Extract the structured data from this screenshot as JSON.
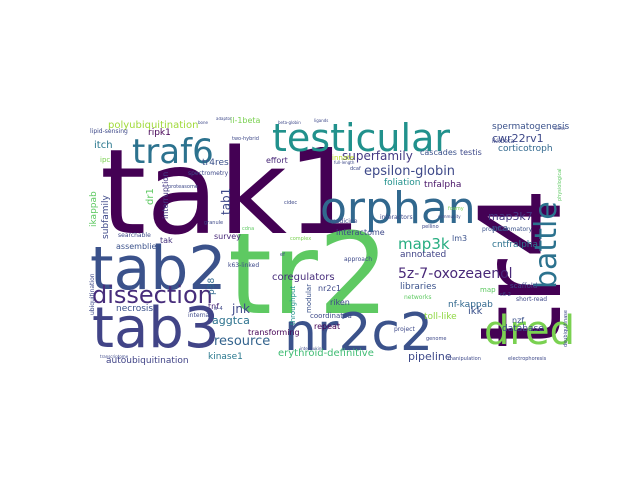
{
  "words": [
    {
      "id": "tak1",
      "text": "tak1",
      "color": "#440154"
    },
    {
      "id": "tr2",
      "text": "tr2",
      "color": "#5ec962"
    },
    {
      "id": "tr4",
      "text": "tr4",
      "color": "#440154"
    },
    {
      "id": "tab2",
      "text": "tab2",
      "color": "#3b528b"
    },
    {
      "id": "tab3",
      "text": "tab3",
      "color": "#414487"
    },
    {
      "id": "nr2c2",
      "text": "nr2c2",
      "color": "#3b528b"
    },
    {
      "id": "orphan",
      "text": "orphan",
      "color": "#31688e"
    },
    {
      "id": "testicular",
      "text": "testicular",
      "color": "#21918c"
    },
    {
      "id": "traf6",
      "text": "traf6",
      "color": "#2c728e"
    },
    {
      "id": "dissection",
      "text": "dissection",
      "color": "#472d7b"
    },
    {
      "id": "dred",
      "text": "dred",
      "color": "#7ad151"
    },
    {
      "id": "battle",
      "text": "battle",
      "color": "#2c728e"
    },
    {
      "id": "5z-7-oxozeaenol",
      "text": "5z-7-oxozeaenol",
      "color": "#482878"
    },
    {
      "id": "epsilon-globin",
      "text": "epsilon-globin",
      "color": "#3e4989"
    },
    {
      "id": "map3k",
      "text": "map3k",
      "color": "#27ad81"
    },
    {
      "id": "superfamily",
      "text": "superfamily",
      "color": "#443983"
    },
    {
      "id": "cwr22rv1",
      "text": "cwr22rv1",
      "color": "#3e4989"
    },
    {
      "id": "polyubiquitination",
      "text": "polyubiquitination",
      "color": "#a0da39"
    },
    {
      "id": "resource",
      "text": "resource",
      "color": "#33638d"
    },
    {
      "id": "jnk",
      "text": "jnk",
      "color": "#3e4989"
    },
    {
      "id": "aggtca",
      "text": "aggtca",
      "color": "#2c728e"
    },
    {
      "id": "erythroid-definitive",
      "text": "erythroid-definitive",
      "color": "#3fbc73"
    },
    {
      "id": "pipeline",
      "text": "pipeline",
      "color": "#3e4989"
    },
    {
      "id": "ripk1",
      "text": "ripk1",
      "color": "#440154"
    },
    {
      "id": "spermatogenesis",
      "text": "spermatogenesis",
      "color": "#3b528b"
    },
    {
      "id": "corticotroph",
      "text": "corticotroph",
      "color": "#31688e"
    },
    {
      "id": "map3k7",
      "text": "map3k7",
      "color": "#443983"
    },
    {
      "id": "cntfralpha",
      "text": "cntfralpha",
      "color": "#2c728e"
    },
    {
      "id": "tnfalpha",
      "text": "tnfalpha",
      "color": "#481467"
    },
    {
      "id": "foliation",
      "text": "foliation",
      "color": "#21918c"
    },
    {
      "id": "coregulators",
      "text": "coregulators",
      "color": "#472d7b"
    },
    {
      "id": "annotated",
      "text": "annotated",
      "color": "#414487"
    },
    {
      "id": "libraries",
      "text": "libraries",
      "color": "#3b528b"
    },
    {
      "id": "nf-kappab",
      "text": "nf-kappab",
      "color": "#31688e"
    },
    {
      "id": "toll-like",
      "text": "toll-like",
      "color": "#8fd744"
    },
    {
      "id": "ikk",
      "text": "ikk",
      "color": "#3b528b"
    },
    {
      "id": "database",
      "text": "database",
      "color": "#3e4989"
    },
    {
      "id": "kinase1",
      "text": "kinase1",
      "color": "#2a788e"
    },
    {
      "id": "autoubiquitination",
      "text": "autoubiquitination",
      "color": "#414487"
    },
    {
      "id": "transforming",
      "text": "transforming",
      "color": "#440154"
    },
    {
      "id": "necrosis",
      "text": "necrosis",
      "color": "#3b528b"
    },
    {
      "id": "tnf",
      "text": "tnf",
      "color": "#482878"
    },
    {
      "id": "tak",
      "text": "tak",
      "color": "#46327e"
    },
    {
      "id": "assemblies",
      "text": "assemblies",
      "color": "#3b528b"
    },
    {
      "id": "itch",
      "text": "itch",
      "color": "#2a788e"
    },
    {
      "id": "tr4res",
      "text": "tr4res",
      "color": "#3b528b"
    },
    {
      "id": "survey",
      "text": "survey",
      "color": "#482878"
    },
    {
      "id": "p38",
      "text": "p38",
      "color": "#31688e"
    },
    {
      "id": "tab1",
      "text": "tab1",
      "color": "#3e4989"
    },
    {
      "id": "dr1",
      "text": "dr1",
      "color": "#5ec962"
    },
    {
      "id": "interruption",
      "text": "interruption",
      "color": "#443983"
    },
    {
      "id": "ikappab",
      "text": "ikappab",
      "color": "#5ec962"
    },
    {
      "id": "subfamily",
      "text": "subfamily",
      "color": "#3e4989"
    },
    {
      "id": "repeat",
      "text": "repeat",
      "color": "#440154"
    },
    {
      "id": "interactome",
      "text": "interactome",
      "color": "#3e4989"
    },
    {
      "id": "coordinated",
      "text": "coordinated",
      "color": "#3e4989"
    },
    {
      "id": "riken",
      "text": "riken",
      "color": "#3e4989"
    },
    {
      "id": "nr2c1",
      "text": "nr2c1",
      "color": "#3e4989"
    },
    {
      "id": "effort",
      "text": "effort",
      "color": "#482878"
    },
    {
      "id": "modular",
      "text": "modular",
      "color": "#3b528b"
    },
    {
      "id": "throughput",
      "text": "throughput",
      "color": "#21918c"
    },
    {
      "id": "il-1beta",
      "text": "il-1beta",
      "color": "#7ad151"
    },
    {
      "id": "innate",
      "text": "innate",
      "color": "#bddf26"
    },
    {
      "id": "cascades",
      "text": "cascades",
      "color": "#3b528b"
    },
    {
      "id": "testis",
      "text": "testis",
      "color": "#3e4989"
    },
    {
      "id": "ikkbeta",
      "text": "ikkbeta",
      "color": "#3e4989"
    },
    {
      "id": "lm3",
      "text": "lm3",
      "color": "#3b528b"
    },
    {
      "id": "pca",
      "text": "pca",
      "color": "#3b528b"
    },
    {
      "id": "nzf",
      "text": "nzf",
      "color": "#3b528b"
    },
    {
      "id": "scaffold",
      "text": "scaffold",
      "color": "#3e4989"
    },
    {
      "id": "short-read",
      "text": "short-read",
      "color": "#3e4989"
    },
    {
      "id": "proinflammatory",
      "text": "proinflammatory",
      "color": "#3b528b"
    },
    {
      "id": "k63-linked",
      "text": "k63-linked",
      "color": "#3e4989"
    },
    {
      "id": "searchable",
      "text": "searchable",
      "color": "#3e4989"
    },
    {
      "id": "spectrometry",
      "text": "spectrometry",
      "color": "#3e4989"
    },
    {
      "id": "lipid-sensing",
      "text": "lipid-sensing",
      "color": "#3e4989"
    },
    {
      "id": "ipc",
      "text": "ipc",
      "color": "#7ad151"
    },
    {
      "id": "ubiquitination",
      "text": "ubiquitination",
      "color": "#3e4989"
    },
    {
      "id": "internal",
      "text": "internal",
      "color": "#3e4989"
    },
    {
      "id": "networks",
      "text": "networks",
      "color": "#5ec962"
    },
    {
      "id": "medicine",
      "text": "medicine",
      "color": "#3e4989"
    },
    {
      "id": "interactors",
      "text": "interactors",
      "color": "#3e4989"
    },
    {
      "id": "approach",
      "text": "approach",
      "color": "#3e4989"
    },
    {
      "id": "project",
      "text": "project",
      "color": "#3e4989"
    },
    {
      "id": "genome",
      "text": "genome",
      "color": "#3e4989"
    },
    {
      "id": "deubiquitinase",
      "text": "deubiquitinase",
      "color": "#3e4989"
    },
    {
      "id": "map",
      "text": "map",
      "color": "#5ec962"
    },
    {
      "id": "manipulation",
      "text": "manipulation",
      "color": "#3e4989"
    },
    {
      "id": "electrophoresis",
      "text": "electrophoresis",
      "color": "#3e4989"
    },
    {
      "id": "proteasome",
      "text": "proteasome",
      "color": "#3e4989"
    },
    {
      "id": "cidec",
      "text": "cidec",
      "color": "#3e4989"
    },
    {
      "id": "granule",
      "text": "granule",
      "color": "#3e4989"
    },
    {
      "id": "foamy",
      "text": "foamy",
      "color": "#7ad151"
    },
    {
      "id": "pellino",
      "text": "pellino",
      "color": "#3e4989"
    },
    {
      "id": "community",
      "text": "community",
      "color": "#3e4989"
    },
    {
      "id": "tr-4",
      "text": "tr-4",
      "color": "#3e4989"
    },
    {
      "id": "two-hybrid",
      "text": "two-hybrid",
      "color": "#3e4989"
    },
    {
      "id": "physiological",
      "text": "physiological",
      "color": "#5ec962"
    },
    {
      "id": "full-length",
      "text": "full-length",
      "color": "#3e4989"
    },
    {
      "id": "beta-globin",
      "text": "beta-globin",
      "color": "#3e4989"
    },
    {
      "id": "c6-2",
      "text": "c6-2",
      "color": "#3e4989"
    },
    {
      "id": "interleukin",
      "text": "interleukin",
      "color": "#3e4989"
    },
    {
      "id": "transcriptome",
      "text": "transcriptome",
      "color": "#3e4989"
    },
    {
      "id": "bone",
      "text": "bone",
      "color": "#3e4989"
    },
    {
      "id": "adaptor",
      "text": "adaptor",
      "color": "#3e4989"
    },
    {
      "id": "ligands",
      "text": "ligands",
      "color": "#3e4989"
    },
    {
      "id": "dcaf",
      "text": "dcaf",
      "color": "#3e4989"
    },
    {
      "id": "dimer",
      "text": "dimer",
      "color": "#3e4989"
    },
    {
      "id": "complex",
      "text": "complex",
      "color": "#7ad151"
    },
    {
      "id": "cdna",
      "text": "cdna",
      "color": "#5ec962"
    },
    {
      "id": "ef",
      "text": "ef",
      "color": "#3e4989"
    }
  ]
}
